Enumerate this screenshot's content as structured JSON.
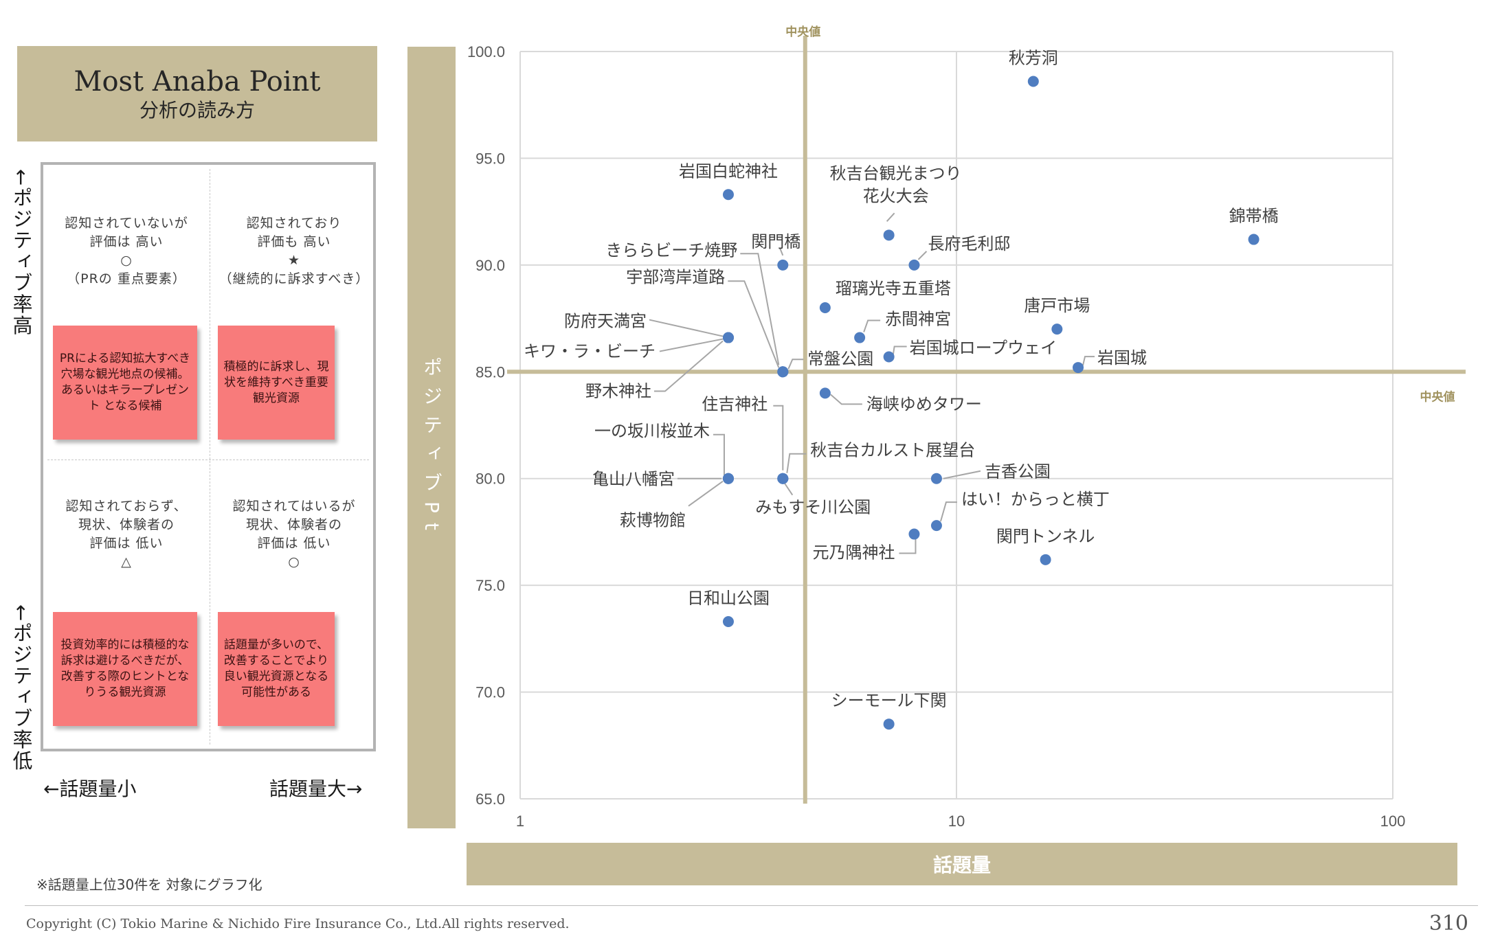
{
  "guide": {
    "title_line1": "Most Anaba Point",
    "title_line2": "分析の読み方",
    "quadrants": {
      "top_left": {
        "l1": "認知されていないが",
        "l2": "評価は 高い",
        "symbol": "○",
        "l4": "（PRの 重点要素）",
        "note": "PRによる認知拡大すべき穴場な観光地点の候補。あるいはキラープレゼント となる候補"
      },
      "top_right": {
        "l1": "認知されており",
        "l2": "評価も 高い",
        "symbol": "★",
        "l4": "（継続的に訴求すべき）",
        "note": "積極的に訴求し、現状を維持すべき重要観光資源"
      },
      "bottom_left": {
        "l1": "認知されておらず、",
        "l2": "現状、体験者の",
        "l3": "評価は 低い",
        "symbol": "△",
        "note": "投資効率的には積極的な訴求は避けるべきだが、改善する際のヒントとなりうる観光資源"
      },
      "bottom_right": {
        "l1": "認知されてはいるが",
        "l2": "現状、体験者の",
        "l3": "評価は 低い",
        "symbol": "○",
        "note": "話題量が多いので、改善することでより良い観光資源となる可能性がある"
      }
    },
    "positive_high": "←ポジティブ率高",
    "positive_low": "←ポジティブ率低",
    "topic_small": "←話題量小",
    "topic_large": "話題量大→"
  },
  "footnote": "※話題量上位30件を 対象にグラフ化",
  "copyright": "Copyright (C) Tokio Marine & Nichido Fire Insurance Co., Ltd.All rights reserved.",
  "page_number": "310",
  "colors": {
    "band": "#c6bc99",
    "median": "#c6bc99",
    "point": "#4f7dc0",
    "sticky": "#f87b7b",
    "median_label": "#a0925e"
  },
  "chart_data": {
    "type": "scatter",
    "xlabel": "話題量",
    "ylabel": "ポジティブPt",
    "x_scale": "log",
    "xlim": [
      1,
      100
    ],
    "ylim": [
      65,
      100
    ],
    "x_ticks": [
      1,
      10,
      100
    ],
    "y_ticks": [
      65.0,
      70.0,
      75.0,
      80.0,
      85.0,
      90.0,
      95.0,
      100.0
    ],
    "grid": true,
    "median_x": 4.5,
    "median_y": 85.0,
    "median_label": "中央値",
    "points": [
      {
        "label": "秋芳洞",
        "x": 15,
        "y": 98.6
      },
      {
        "label": "岩国白蛇神社",
        "x": 3,
        "y": 93.3
      },
      {
        "label": "秋吉台観光まつり 花火大会",
        "x": 7,
        "y": 91.4
      },
      {
        "label": "錦帯橋",
        "x": 48,
        "y": 91.2
      },
      {
        "label": "関門橋",
        "x": 4,
        "y": 90.0
      },
      {
        "label": "長府毛利邸",
        "x": 8,
        "y": 90.0
      },
      {
        "label": "瑠璃光寺五重塔",
        "x": 5,
        "y": 88.0
      },
      {
        "label": "唐戸市場",
        "x": 17,
        "y": 87.0
      },
      {
        "label": "赤間神宮",
        "x": 6,
        "y": 86.6
      },
      {
        "label": "防府天満宮",
        "x": 3,
        "y": 86.6
      },
      {
        "label": "岩国城ロープウェイ",
        "x": 7,
        "y": 85.7
      },
      {
        "label": "岩国城",
        "x": 19,
        "y": 85.2
      },
      {
        "label": "常盤公園",
        "x": 4,
        "y": 85.0
      },
      {
        "label": "きららビーチ焼野",
        "x": 4,
        "y": 85.0
      },
      {
        "label": "宇部湾岸道路",
        "x": 4,
        "y": 85.0
      },
      {
        "label": "キワ・ラ・ビーチ",
        "x": 3,
        "y": 86.6
      },
      {
        "label": "野木神社",
        "x": 3,
        "y": 86.6
      },
      {
        "label": "海峡ゆめタワー",
        "x": 5,
        "y": 84.0
      },
      {
        "label": "住吉神社",
        "x": 4,
        "y": 80.0
      },
      {
        "label": "秋吉台カルスト展望台",
        "x": 4,
        "y": 80.0
      },
      {
        "label": "一の坂川桜並木",
        "x": 3,
        "y": 80.0
      },
      {
        "label": "亀山八幡宮",
        "x": 3,
        "y": 80.0
      },
      {
        "label": "萩博物館",
        "x": 3,
        "y": 80.0
      },
      {
        "label": "みもすそ川公園",
        "x": 4,
        "y": 80.0
      },
      {
        "label": "吉香公園",
        "x": 9,
        "y": 80.0
      },
      {
        "label": "はい！からっと横丁",
        "x": 9,
        "y": 77.8
      },
      {
        "label": "元乃隅神社",
        "x": 8,
        "y": 77.4
      },
      {
        "label": "関門トンネル",
        "x": 16,
        "y": 76.2
      },
      {
        "label": "日和山公園",
        "x": 3,
        "y": 73.3
      },
      {
        "label": "シーモール下関",
        "x": 7,
        "y": 68.5
      }
    ]
  }
}
